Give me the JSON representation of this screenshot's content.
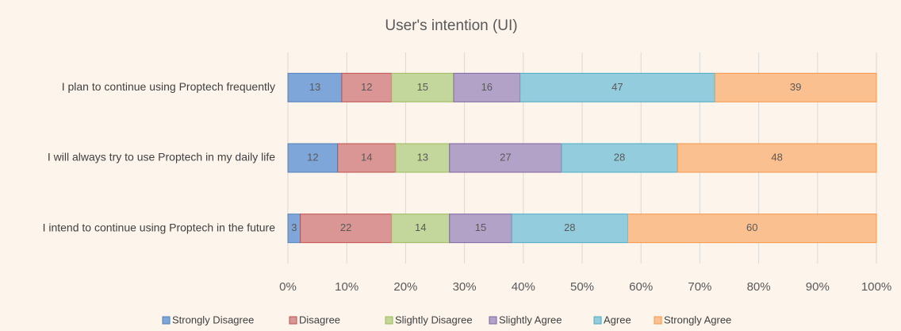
{
  "chart_data": {
    "type": "bar",
    "orientation": "horizontal",
    "stacked_percent": true,
    "title": "User's intention (UI)",
    "categories": [
      "I plan to continue using Proptech frequently",
      "I will always try to use Proptech in my daily life",
      "I intend to continue using Proptech in the future"
    ],
    "series": [
      {
        "name": "Strongly Disagree",
        "color": "#7ea6d8",
        "values": [
          13,
          12,
          3
        ]
      },
      {
        "name": "Disagree",
        "color": "#d99694",
        "values": [
          12,
          14,
          22
        ]
      },
      {
        "name": "Slightly Disagree",
        "color": "#c3d69b",
        "values": [
          15,
          13,
          14
        ]
      },
      {
        "name": "Slightly Agree",
        "color": "#b3a2c7",
        "values": [
          16,
          27,
          15
        ]
      },
      {
        "name": "Agree",
        "color": "#93cddd",
        "values": [
          47,
          28,
          28
        ]
      },
      {
        "name": "Strongly Agree",
        "color": "#fac090",
        "values": [
          39,
          48,
          60
        ]
      }
    ],
    "xlim": [
      0,
      100
    ],
    "xticks": [
      {
        "value": 0,
        "label": "0%"
      },
      {
        "value": 10,
        "label": "10%"
      },
      {
        "value": 20,
        "label": "20%"
      },
      {
        "value": 30,
        "label": "30%"
      },
      {
        "value": 40,
        "label": "40%"
      },
      {
        "value": 50,
        "label": "50%"
      },
      {
        "value": 60,
        "label": "60%"
      },
      {
        "value": 70,
        "label": "70%"
      },
      {
        "value": 80,
        "label": "80%"
      },
      {
        "value": 90,
        "label": "90%"
      },
      {
        "value": 100,
        "label": "100%"
      }
    ],
    "grid": true,
    "legend": "bottom"
  }
}
